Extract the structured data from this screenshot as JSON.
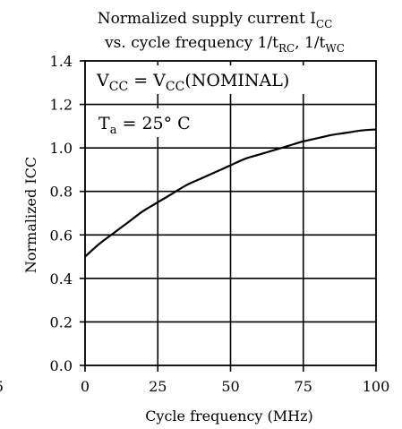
{
  "chart_data": {
    "type": "line",
    "title_line1": {
      "text": "Normalized supply current I",
      "sub": "CC"
    },
    "title_line2": {
      "prefix": "vs. cycle frequency 1/t",
      "sub1": "RC",
      "mid": ", 1/t",
      "sub2": "WC"
    },
    "xlabel": "Cycle frequency (MHz)",
    "ylabel": "Normalized ICC",
    "xlim": [
      0,
      100
    ],
    "ylim": [
      0.0,
      1.4
    ],
    "x_ticks": [
      "0",
      "25",
      "50",
      "75",
      "100"
    ],
    "y_ticks": [
      "0.0",
      "0.2",
      "0.4",
      "0.6",
      "0.8",
      "1.0",
      "1.2",
      "1.4"
    ],
    "x_tick_values": [
      0,
      25,
      50,
      75,
      100
    ],
    "y_tick_values": [
      0.0,
      0.2,
      0.4,
      0.6,
      0.8,
      1.0,
      1.2,
      1.4
    ],
    "grid": true,
    "stray_label": "5",
    "annotations": {
      "vcc": {
        "a": "V",
        "a_sub": "CC",
        "eq": " = V",
        "b_sub": "CC",
        "tail": "(NOMINAL)"
      },
      "ta": {
        "a": "T",
        "a_sub": "a",
        "tail": " = 25° C"
      }
    },
    "series": [
      {
        "x": [
          0,
          5,
          10,
          15,
          20,
          25,
          30,
          35,
          40,
          45,
          50,
          55,
          60,
          65,
          70,
          75,
          80,
          85,
          90,
          95,
          100
        ],
        "values": [
          0.5,
          0.56,
          0.61,
          0.66,
          0.71,
          0.75,
          0.79,
          0.83,
          0.86,
          0.89,
          0.92,
          0.95,
          0.97,
          0.99,
          1.01,
          1.03,
          1.045,
          1.06,
          1.07,
          1.08,
          1.085
        ]
      }
    ]
  }
}
